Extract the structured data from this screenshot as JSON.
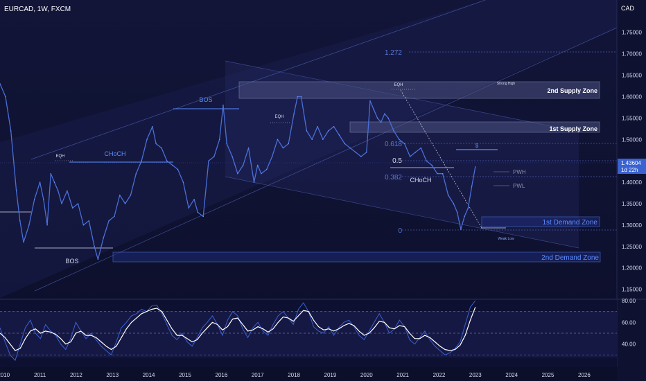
{
  "header": {
    "symbol_label": "EURCAD, 1W, FXCM",
    "currency_label": "CAD"
  },
  "price_badge": {
    "price": "1.43604",
    "countdown": "1d 22h"
  },
  "colors": {
    "background": "#0e1130",
    "price_line": "#4a6fd8",
    "zone_fill": "#3a4270",
    "zone_border": "#9aa3c8",
    "demand_text": "#5a8cff",
    "label_text": "#d8dcef",
    "muted_text": "#8a90b0",
    "grid_dotted": "#4a4f80",
    "oscillator_fast": "#3a62d0",
    "oscillator_slow": "#ffffff"
  },
  "chart_data": {
    "type": "line",
    "title": "EURCAD, 1W, FXCM",
    "x_tick_labels": [
      "2010",
      "2011",
      "2012",
      "2013",
      "2014",
      "2015",
      "2016",
      "2017",
      "2018",
      "2019",
      "2020",
      "2021",
      "2022",
      "2023",
      "2024",
      "2025",
      "2026"
    ],
    "y_tick_labels": [
      "1.75000",
      "1.70000",
      "1.65000",
      "1.60000",
      "1.55000",
      "1.50000",
      "1.45000",
      "1.40000",
      "1.35000",
      "1.30000",
      "1.25000",
      "1.20000",
      "1.15000"
    ],
    "ylim": [
      1.13,
      1.79
    ],
    "xlim": [
      2009.9,
      2026.9
    ],
    "series": [
      {
        "x": [
          2009.9,
          2010.05,
          2010.2,
          2010.35,
          2010.45,
          2010.55,
          2010.7,
          2010.85,
          2011.0,
          2011.1,
          2011.2,
          2011.3,
          2011.4,
          2011.5,
          2011.6,
          2011.75,
          2011.9,
          2012.05,
          2012.2,
          2012.35,
          2012.5,
          2012.6,
          2012.75,
          2012.9,
          2013.05,
          2013.2,
          2013.35,
          2013.5,
          2013.65,
          2013.8,
          2013.95,
          2014.1,
          2014.2,
          2014.35,
          2014.5,
          2014.65,
          2014.8,
          2014.95,
          2015.1,
          2015.25,
          2015.35,
          2015.5,
          2015.65,
          2015.8,
          2015.95,
          2016.05,
          2016.15,
          2016.3,
          2016.45,
          2016.6,
          2016.75,
          2016.9,
          2017.0,
          2017.1,
          2017.25,
          2017.4,
          2017.55,
          2017.7,
          2017.85,
          2018.0,
          2018.1,
          2018.2,
          2018.35,
          2018.5,
          2018.65,
          2018.8,
          2018.95,
          2019.1,
          2019.25,
          2019.4,
          2019.55,
          2019.7,
          2019.85,
          2020.0,
          2020.1,
          2020.2,
          2020.3,
          2020.4,
          2020.5,
          2020.6,
          2020.75,
          2020.9,
          2021.05,
          2021.2,
          2021.35,
          2021.5,
          2021.65,
          2021.8,
          2021.95,
          2022.1,
          2022.25,
          2022.4,
          2022.5,
          2022.6,
          2022.7,
          2022.8,
          2022.9,
          2023.0
        ],
        "values": [
          1.63,
          1.6,
          1.52,
          1.38,
          1.31,
          1.26,
          1.3,
          1.36,
          1.4,
          1.36,
          1.3,
          1.42,
          1.4,
          1.38,
          1.35,
          1.38,
          1.34,
          1.35,
          1.3,
          1.31,
          1.25,
          1.22,
          1.27,
          1.31,
          1.32,
          1.37,
          1.35,
          1.37,
          1.42,
          1.45,
          1.5,
          1.53,
          1.49,
          1.48,
          1.45,
          1.44,
          1.43,
          1.4,
          1.34,
          1.36,
          1.33,
          1.32,
          1.45,
          1.46,
          1.5,
          1.58,
          1.49,
          1.46,
          1.42,
          1.44,
          1.48,
          1.4,
          1.44,
          1.42,
          1.43,
          1.46,
          1.5,
          1.48,
          1.49,
          1.56,
          1.6,
          1.6,
          1.52,
          1.5,
          1.53,
          1.5,
          1.52,
          1.53,
          1.51,
          1.49,
          1.48,
          1.47,
          1.46,
          1.47,
          1.59,
          1.57,
          1.55,
          1.54,
          1.56,
          1.55,
          1.52,
          1.5,
          1.49,
          1.46,
          1.47,
          1.48,
          1.45,
          1.44,
          1.42,
          1.42,
          1.37,
          1.35,
          1.33,
          1.29,
          1.32,
          1.34,
          1.39,
          1.43604
        ]
      }
    ],
    "annotations": {
      "fib_levels": [
        "1.272",
        "0.618",
        "0.5",
        "0.382",
        "0"
      ],
      "zone_labels": [
        "2nd Supply Zone",
        "1st Supply Zone",
        "1st Demand Zone",
        "2nd Demand Zone"
      ],
      "structure_labels": [
        "BOS",
        "EQH",
        "CHoCH",
        "BOS",
        "EQH",
        "EQH",
        "CHoCH",
        "Strong High",
        "Weak Low",
        "PWH",
        "PWL",
        "$"
      ]
    }
  },
  "oscillator": {
    "type": "line",
    "y_tick_labels": [
      "80.00",
      "60.00",
      "40.00"
    ],
    "ylim": [
      20,
      80
    ],
    "levels": [
      70,
      50,
      30
    ],
    "fast": [
      55,
      42,
      30,
      25,
      40,
      55,
      62,
      50,
      45,
      58,
      52,
      48,
      40,
      35,
      45,
      60,
      52,
      45,
      50,
      44,
      38,
      34,
      30,
      42,
      55,
      60,
      66,
      68,
      72,
      70,
      75,
      76,
      68,
      58,
      48,
      44,
      50,
      42,
      38,
      46,
      55,
      60,
      66,
      58,
      48,
      62,
      70,
      66,
      54,
      46,
      55,
      60,
      52,
      48,
      58,
      66,
      70,
      64,
      58,
      72,
      78,
      70,
      56,
      52,
      50,
      56,
      48,
      55,
      60,
      62,
      56,
      48,
      44,
      52,
      60,
      68,
      60,
      50,
      54,
      62,
      56,
      44,
      40,
      46,
      52,
      44,
      38,
      34,
      30,
      32,
      36,
      42,
      58,
      74,
      80
    ],
    "slow": [
      50,
      46,
      40,
      34,
      36,
      45,
      52,
      54,
      50,
      52,
      51,
      49,
      45,
      40,
      42,
      50,
      52,
      48,
      48,
      46,
      42,
      38,
      35,
      38,
      46,
      54,
      60,
      64,
      68,
      70,
      72,
      73,
      70,
      62,
      54,
      48,
      48,
      45,
      42,
      44,
      50,
      55,
      60,
      58,
      53,
      56,
      63,
      64,
      58,
      52,
      53,
      56,
      54,
      51,
      54,
      60,
      65,
      64,
      61,
      66,
      71,
      70,
      62,
      56,
      53,
      54,
      52,
      54,
      57,
      59,
      57,
      52,
      48,
      50,
      55,
      61,
      60,
      55,
      54,
      57,
      56,
      50,
      45,
      45,
      48,
      46,
      42,
      38,
      35,
      34,
      35,
      39,
      48,
      62,
      74
    ]
  }
}
